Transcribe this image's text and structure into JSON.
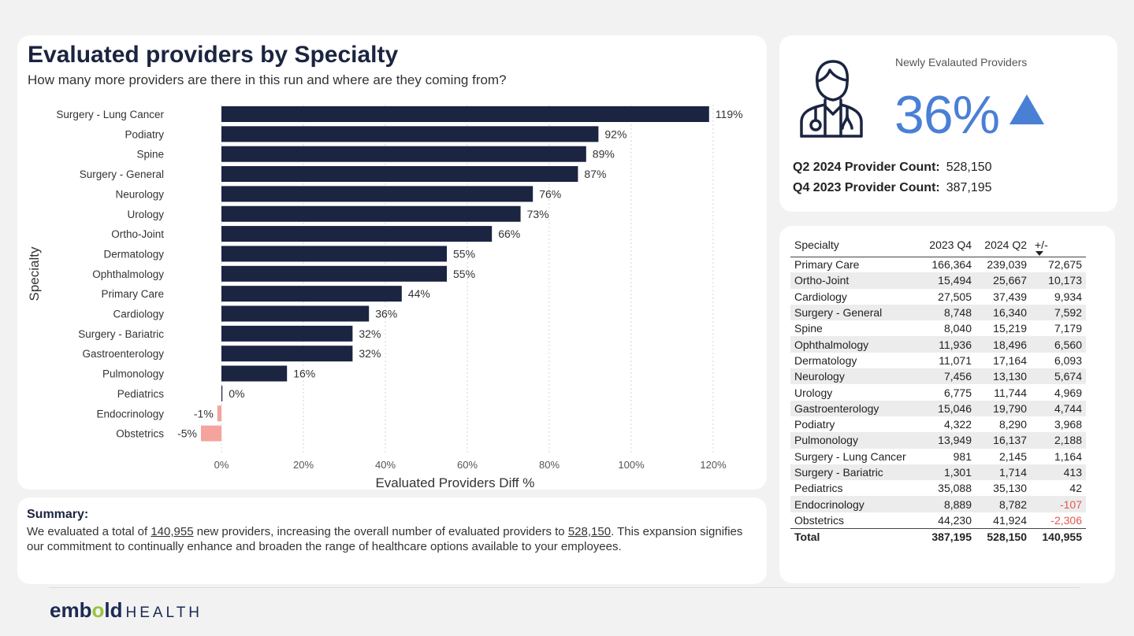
{
  "chart": {
    "title": "Evaluated providers by Specialty",
    "subtitle": "How many more providers are there in this run and where are they coming from?"
  },
  "chart_data": {
    "type": "bar",
    "orientation": "horizontal",
    "categories": [
      "Surgery - Lung Cancer",
      "Podiatry",
      "Spine",
      "Surgery - General",
      "Neurology",
      "Urology",
      "Ortho-Joint",
      "Dermatology",
      "Ophthalmology",
      "Primary Care",
      "Cardiology",
      "Surgery - Bariatric",
      "Gastroenterology",
      "Pulmonology",
      "Pediatrics",
      "Endocrinology",
      "Obstetrics"
    ],
    "values": [
      119,
      92,
      89,
      87,
      76,
      73,
      66,
      55,
      55,
      44,
      36,
      32,
      32,
      16,
      0,
      -1,
      -5
    ],
    "value_labels": [
      "119%",
      "92%",
      "89%",
      "87%",
      "76%",
      "73%",
      "66%",
      "55%",
      "55%",
      "44%",
      "36%",
      "32%",
      "32%",
      "16%",
      "0%",
      "-1%",
      "-5%"
    ],
    "xlabel": "Evaluated Providers Diff %",
    "ylabel": "Specialty",
    "xlim": [
      -5,
      120
    ],
    "xticks": [
      0,
      20,
      40,
      60,
      80,
      100,
      120
    ],
    "xtick_labels": [
      "0%",
      "20%",
      "40%",
      "60%",
      "80%",
      "100%",
      "120%"
    ],
    "colors": {
      "positive": "#1b2440",
      "negative": "#f4a49c"
    },
    "grid": "vertical dotted"
  },
  "summary": {
    "heading": "Summary:",
    "text_1": "We evaluated a total of ",
    "new_providers": "140,955",
    "text_2": " new providers, increasing the overall number of evaluated providers to ",
    "total_providers": "528,150",
    "text_3": ". This expansion signifies our commitment to continually enhance and broaden the range of healthcare options available to your employees."
  },
  "kpi": {
    "label": "Newly Evalauted Providers",
    "value": "36%",
    "trend_icon": "up-triangle-icon",
    "accent_color": "#4a7fd6",
    "q2_label": "Q2 2024 Provider Count:",
    "q2_value": "528,150",
    "q4_label": "Q4 2023 Provider Count:",
    "q4_value": "387,195"
  },
  "table": {
    "headers": [
      "Specialty",
      "2023 Q4",
      "2024 Q2",
      "+/-"
    ],
    "rows": [
      [
        "Primary Care",
        "166,364",
        "239,039",
        "72,675"
      ],
      [
        "Ortho-Joint",
        "15,494",
        "25,667",
        "10,173"
      ],
      [
        "Cardiology",
        "27,505",
        "37,439",
        "9,934"
      ],
      [
        "Surgery - General",
        "8,748",
        "16,340",
        "7,592"
      ],
      [
        "Spine",
        "8,040",
        "15,219",
        "7,179"
      ],
      [
        "Ophthalmology",
        "11,936",
        "18,496",
        "6,560"
      ],
      [
        "Dermatology",
        "11,071",
        "17,164",
        "6,093"
      ],
      [
        "Neurology",
        "7,456",
        "13,130",
        "5,674"
      ],
      [
        "Urology",
        "6,775",
        "11,744",
        "4,969"
      ],
      [
        "Gastroenterology",
        "15,046",
        "19,790",
        "4,744"
      ],
      [
        "Podiatry",
        "4,322",
        "8,290",
        "3,968"
      ],
      [
        "Pulmonology",
        "13,949",
        "16,137",
        "2,188"
      ],
      [
        "Surgery - Lung Cancer",
        "981",
        "2,145",
        "1,164"
      ],
      [
        "Surgery - Bariatric",
        "1,301",
        "1,714",
        "413"
      ],
      [
        "Pediatrics",
        "35,088",
        "35,130",
        "42"
      ],
      [
        "Endocrinology",
        "8,889",
        "8,782",
        "-107"
      ],
      [
        "Obstetrics",
        "44,230",
        "41,924",
        "-2,306"
      ]
    ],
    "total": [
      "Total",
      "387,195",
      "528,150",
      "140,955"
    ]
  },
  "brand": {
    "part1": "emb",
    "accent": "o",
    "part2": "ld",
    "suffix": "HEALTH"
  }
}
